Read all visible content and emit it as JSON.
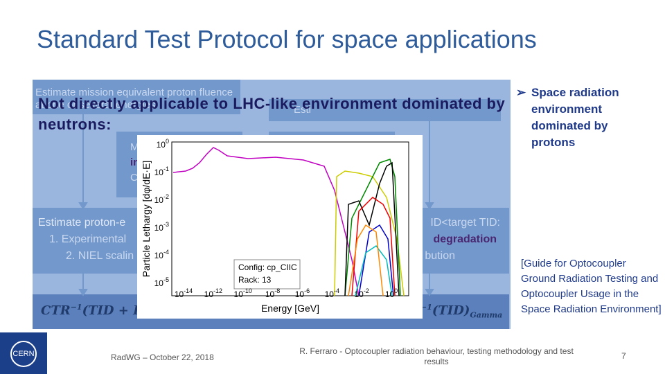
{
  "header": {
    "title": "Standard Test Protocol for space applications"
  },
  "flow": {
    "box1": "Estimate mission equivalent proton fluence at one or several energies",
    "box2": "Esti",
    "overlay": "Not directly applicable to LHC-like environment dominated by neutrons:",
    "mid": [
      "M",
      "in",
      "CT"
    ],
    "left": [
      "Estimate proton-e",
      "1. Experimental",
      "2. NIEL scalin"
    ],
    "right": [
      "ID<target TID:",
      "degradation",
      "bution"
    ],
    "formula_left": {
      "f": "CTR",
      "sup": "−1",
      "rest": "(TID + D"
    },
    "formula_right": {
      "sup": "−1",
      "rest": "(TID)",
      "sub": "Gamma"
    }
  },
  "plot": {
    "ylabel": "Particle Lethargy [dφ/dE·E]",
    "xlabel": "Energy [GeV]",
    "legend": [
      "Config: cp_CIIC",
      "Rack: 13"
    ],
    "yticks": [
      {
        "base": "10",
        "exp": "0"
      },
      {
        "base": "10",
        "exp": "-1"
      },
      {
        "base": "10",
        "exp": "-2"
      },
      {
        "base": "10",
        "exp": "-3"
      },
      {
        "base": "10",
        "exp": "-4"
      },
      {
        "base": "10",
        "exp": "-5"
      }
    ],
    "xticks": [
      {
        "base": "10",
        "exp": "-14"
      },
      {
        "base": "10",
        "exp": "-12"
      },
      {
        "base": "10",
        "exp": "-10"
      },
      {
        "base": "10",
        "exp": "-8"
      },
      {
        "base": "10",
        "exp": "-6"
      },
      {
        "base": "10",
        "exp": "-4"
      },
      {
        "base": "10",
        "exp": "-2"
      },
      {
        "base": "10",
        "exp": "0"
      }
    ]
  },
  "side": {
    "bullet": "Space radiation environment dominated by protons",
    "citation": "[Guide for Optocoupler Ground Radiation Testing and Optocoupler Usage in the Space Radiation Environment]"
  },
  "footer": {
    "event": "RadWG – October 22, 2018",
    "author": "R. Ferraro - Optocoupler radiation behaviour, testing methodology and test results",
    "page": "7",
    "logo": "CERN"
  }
}
